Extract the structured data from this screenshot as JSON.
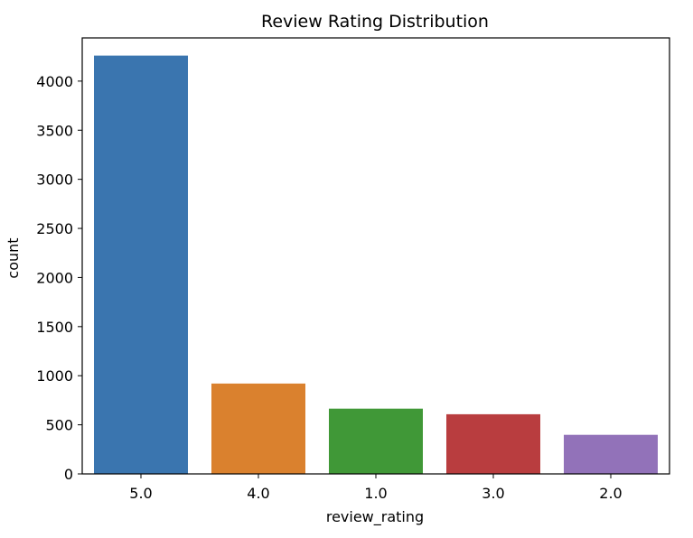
{
  "chart_data": {
    "type": "bar",
    "title": "Review Rating Distribution",
    "xlabel": "review_rating",
    "ylabel": "count",
    "categories": [
      "5.0",
      "4.0",
      "1.0",
      "3.0",
      "2.0"
    ],
    "values": [
      4260,
      920,
      665,
      608,
      398
    ],
    "colors": [
      "#3a75af",
      "#da812e",
      "#409837",
      "#b93d3f",
      "#9272b9"
    ],
    "ylim": [
      0,
      4440
    ],
    "yticks": [
      0,
      500,
      1000,
      1500,
      2000,
      2500,
      3000,
      3500,
      4000
    ],
    "grid": false,
    "legend": "none"
  }
}
